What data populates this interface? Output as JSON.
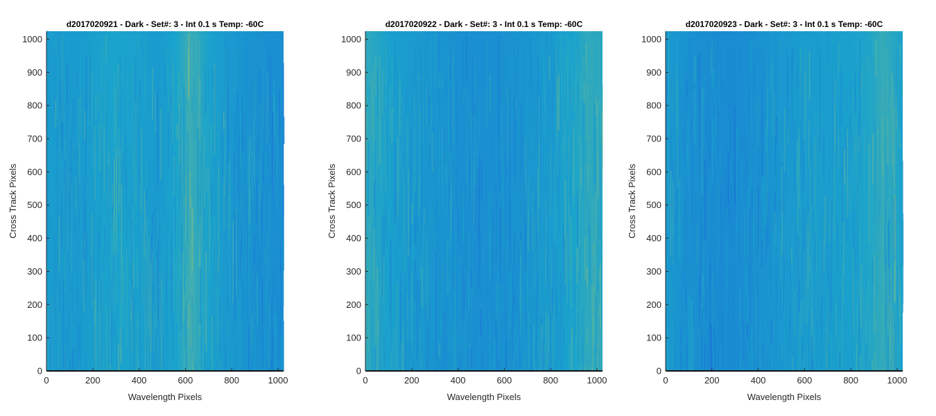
{
  "colors": {
    "map_low": "#1a70d8",
    "map_mid": "#1aa4cc",
    "map_high": "#a6c56a",
    "axis": "#262626"
  },
  "chart_data": [
    {
      "type": "heatmap",
      "title": "d2017020921 - Dark - Set#: 3 - Int 0.1 s Temp: -60C",
      "xlabel": "Wavelength Pixels",
      "ylabel": "Cross Track Pixels",
      "xlim": [
        0,
        1024
      ],
      "ylim": [
        0,
        1024
      ],
      "xticks": [
        0,
        200,
        400,
        600,
        800,
        1000
      ],
      "yticks": [
        0,
        100,
        200,
        300,
        400,
        500,
        600,
        700,
        800,
        900,
        1000
      ],
      "column_profile": [
        {
          "x": 0,
          "level": 0.42
        },
        {
          "x": 120,
          "level": 0.4
        },
        {
          "x": 200,
          "level": 0.45
        },
        {
          "x": 300,
          "level": 0.5
        },
        {
          "x": 400,
          "level": 0.46
        },
        {
          "x": 480,
          "level": 0.4
        },
        {
          "x": 560,
          "level": 0.5
        },
        {
          "x": 620,
          "level": 0.62
        },
        {
          "x": 700,
          "level": 0.48
        },
        {
          "x": 800,
          "level": 0.38
        },
        {
          "x": 900,
          "level": 0.33
        },
        {
          "x": 1024,
          "level": 0.3
        }
      ]
    },
    {
      "type": "heatmap",
      "title": "d2017020922 - Dark - Set#: 3 - Int 0.1 s Temp: -60C",
      "xlabel": "Wavelength Pixels",
      "ylabel": "Cross Track Pixels",
      "xlim": [
        0,
        1024
      ],
      "ylim": [
        0,
        1024
      ],
      "xticks": [
        0,
        200,
        400,
        600,
        800,
        1000
      ],
      "yticks": [
        0,
        100,
        200,
        300,
        400,
        500,
        600,
        700,
        800,
        900,
        1000
      ],
      "column_profile": [
        {
          "x": 0,
          "level": 0.58
        },
        {
          "x": 100,
          "level": 0.47
        },
        {
          "x": 200,
          "level": 0.4
        },
        {
          "x": 300,
          "level": 0.36
        },
        {
          "x": 400,
          "level": 0.32
        },
        {
          "x": 500,
          "level": 0.3
        },
        {
          "x": 600,
          "level": 0.33
        },
        {
          "x": 700,
          "level": 0.36
        },
        {
          "x": 800,
          "level": 0.42
        },
        {
          "x": 900,
          "level": 0.5
        },
        {
          "x": 960,
          "level": 0.58
        },
        {
          "x": 1024,
          "level": 0.55
        }
      ]
    },
    {
      "type": "heatmap",
      "title": "d2017020923 - Dark - Set#: 3 - Int 0.1 s Temp: -60C",
      "xlabel": "Wavelength Pixels",
      "ylabel": "Cross Track Pixels",
      "xlim": [
        0,
        1024
      ],
      "ylim": [
        0,
        1024
      ],
      "xticks": [
        0,
        200,
        400,
        600,
        800,
        1000
      ],
      "yticks": [
        0,
        100,
        200,
        300,
        400,
        500,
        600,
        700,
        800,
        900,
        1000
      ],
      "column_profile": [
        {
          "x": 0,
          "level": 0.4
        },
        {
          "x": 100,
          "level": 0.32
        },
        {
          "x": 200,
          "level": 0.28
        },
        {
          "x": 300,
          "level": 0.27
        },
        {
          "x": 400,
          "level": 0.32
        },
        {
          "x": 500,
          "level": 0.38
        },
        {
          "x": 600,
          "level": 0.42
        },
        {
          "x": 700,
          "level": 0.44
        },
        {
          "x": 800,
          "level": 0.47
        },
        {
          "x": 880,
          "level": 0.52
        },
        {
          "x": 940,
          "level": 0.6
        },
        {
          "x": 1024,
          "level": 0.48
        }
      ]
    }
  ]
}
